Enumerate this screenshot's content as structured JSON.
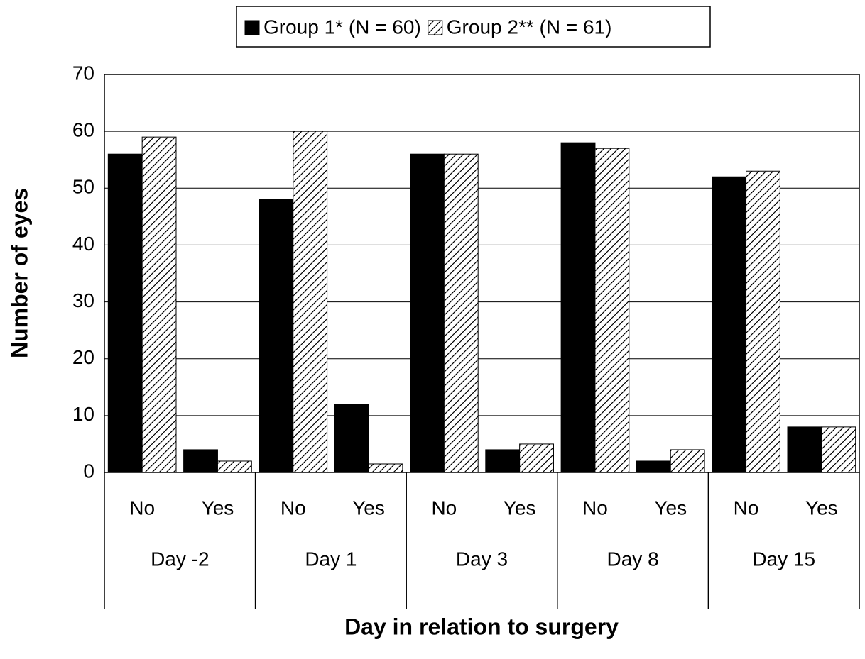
{
  "chart_data": {
    "type": "bar",
    "x_label": "Day in relation to surgery",
    "y_label": "Number of eyes",
    "categories": [
      "No",
      "Yes",
      "No",
      "Yes",
      "No",
      "Yes",
      "No",
      "Yes",
      "No",
      "Yes"
    ],
    "groups": [
      "Day -2",
      "Day 1",
      "Day 3",
      "Day 8",
      "Day 15"
    ],
    "series": [
      {
        "name": "Group 1* (N = 60)",
        "color": "#000000",
        "values": [
          56,
          4,
          48,
          12,
          56,
          4,
          58,
          2,
          52,
          8
        ]
      },
      {
        "name": "Group 2** (N = 61)",
        "color": "#000000",
        "pattern": "diagonal",
        "values": [
          59,
          2,
          60,
          1.5,
          56,
          5,
          57,
          4,
          53,
          8
        ]
      }
    ],
    "ylim": [
      0,
      70
    ],
    "yticks": [
      0,
      10,
      20,
      30,
      40,
      50,
      60,
      70
    ],
    "grid": true,
    "legend": "top"
  }
}
